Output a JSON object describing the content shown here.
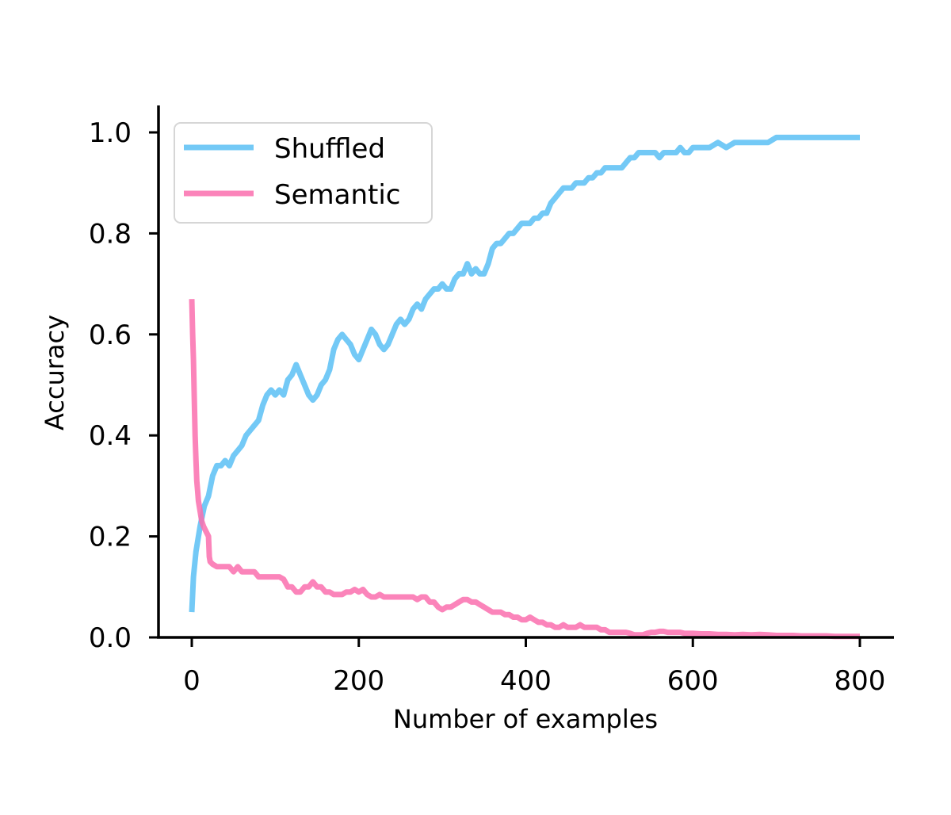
{
  "chart_data": {
    "type": "line",
    "title": "",
    "xlabel": "Number of examples",
    "ylabel": "Accuracy",
    "xlim": [
      -20,
      840
    ],
    "ylim": [
      0,
      1.05
    ],
    "x_ticks": [
      0,
      200,
      400,
      600,
      800
    ],
    "x_tick_labels": [
      "0",
      "200",
      "400",
      "600",
      "800"
    ],
    "y_ticks": [
      0.0,
      0.2,
      0.4,
      0.6,
      0.8,
      1.0
    ],
    "y_tick_labels": [
      "0.0",
      "0.2",
      "0.4",
      "0.6",
      "0.8",
      "1.0"
    ],
    "grid": false,
    "legend_position": "upper-left",
    "series": [
      {
        "name": "Shuffled",
        "color": "#5bbff5",
        "points": [
          [
            0,
            0.05
          ],
          [
            2,
            0.12
          ],
          [
            5,
            0.17
          ],
          [
            10,
            0.22
          ],
          [
            15,
            0.26
          ],
          [
            20,
            0.28
          ],
          [
            25,
            0.32
          ],
          [
            30,
            0.34
          ],
          [
            35,
            0.34
          ],
          [
            40,
            0.35
          ],
          [
            45,
            0.34
          ],
          [
            50,
            0.36
          ],
          [
            55,
            0.37
          ],
          [
            60,
            0.38
          ],
          [
            65,
            0.4
          ],
          [
            70,
            0.41
          ],
          [
            75,
            0.42
          ],
          [
            80,
            0.43
          ],
          [
            85,
            0.46
          ],
          [
            90,
            0.48
          ],
          [
            95,
            0.49
          ],
          [
            100,
            0.48
          ],
          [
            105,
            0.49
          ],
          [
            110,
            0.48
          ],
          [
            115,
            0.51
          ],
          [
            120,
            0.52
          ],
          [
            125,
            0.54
          ],
          [
            130,
            0.52
          ],
          [
            135,
            0.5
          ],
          [
            140,
            0.48
          ],
          [
            145,
            0.47
          ],
          [
            150,
            0.48
          ],
          [
            155,
            0.5
          ],
          [
            160,
            0.51
          ],
          [
            165,
            0.53
          ],
          [
            170,
            0.57
          ],
          [
            175,
            0.59
          ],
          [
            180,
            0.6
          ],
          [
            185,
            0.59
          ],
          [
            190,
            0.58
          ],
          [
            195,
            0.56
          ],
          [
            200,
            0.55
          ],
          [
            205,
            0.57
          ],
          [
            210,
            0.59
          ],
          [
            215,
            0.61
          ],
          [
            220,
            0.6
          ],
          [
            225,
            0.58
          ],
          [
            230,
            0.57
          ],
          [
            235,
            0.58
          ],
          [
            240,
            0.6
          ],
          [
            245,
            0.62
          ],
          [
            250,
            0.63
          ],
          [
            255,
            0.62
          ],
          [
            260,
            0.63
          ],
          [
            265,
            0.65
          ],
          [
            270,
            0.66
          ],
          [
            275,
            0.65
          ],
          [
            280,
            0.67
          ],
          [
            285,
            0.68
          ],
          [
            290,
            0.69
          ],
          [
            295,
            0.69
          ],
          [
            300,
            0.7
          ],
          [
            305,
            0.69
          ],
          [
            310,
            0.69
          ],
          [
            315,
            0.71
          ],
          [
            320,
            0.72
          ],
          [
            325,
            0.72
          ],
          [
            330,
            0.74
          ],
          [
            335,
            0.72
          ],
          [
            340,
            0.73
          ],
          [
            345,
            0.72
          ],
          [
            350,
            0.72
          ],
          [
            355,
            0.74
          ],
          [
            360,
            0.77
          ],
          [
            365,
            0.78
          ],
          [
            370,
            0.78
          ],
          [
            375,
            0.79
          ],
          [
            380,
            0.8
          ],
          [
            385,
            0.8
          ],
          [
            390,
            0.81
          ],
          [
            395,
            0.82
          ],
          [
            400,
            0.82
          ],
          [
            405,
            0.82
          ],
          [
            410,
            0.83
          ],
          [
            415,
            0.83
          ],
          [
            420,
            0.84
          ],
          [
            425,
            0.84
          ],
          [
            430,
            0.86
          ],
          [
            435,
            0.87
          ],
          [
            440,
            0.88
          ],
          [
            445,
            0.89
          ],
          [
            450,
            0.89
          ],
          [
            455,
            0.89
          ],
          [
            460,
            0.9
          ],
          [
            465,
            0.9
          ],
          [
            470,
            0.9
          ],
          [
            475,
            0.91
          ],
          [
            480,
            0.91
          ],
          [
            485,
            0.92
          ],
          [
            490,
            0.92
          ],
          [
            495,
            0.93
          ],
          [
            500,
            0.93
          ],
          [
            505,
            0.93
          ],
          [
            510,
            0.93
          ],
          [
            515,
            0.93
          ],
          [
            520,
            0.94
          ],
          [
            525,
            0.95
          ],
          [
            530,
            0.95
          ],
          [
            535,
            0.96
          ],
          [
            540,
            0.96
          ],
          [
            545,
            0.96
          ],
          [
            550,
            0.96
          ],
          [
            555,
            0.96
          ],
          [
            560,
            0.95
          ],
          [
            565,
            0.96
          ],
          [
            570,
            0.96
          ],
          [
            575,
            0.96
          ],
          [
            580,
            0.96
          ],
          [
            585,
            0.97
          ],
          [
            590,
            0.96
          ],
          [
            595,
            0.96
          ],
          [
            600,
            0.97
          ],
          [
            605,
            0.97
          ],
          [
            610,
            0.97
          ],
          [
            615,
            0.97
          ],
          [
            620,
            0.97
          ],
          [
            630,
            0.98
          ],
          [
            640,
            0.97
          ],
          [
            650,
            0.98
          ],
          [
            660,
            0.98
          ],
          [
            670,
            0.98
          ],
          [
            680,
            0.98
          ],
          [
            690,
            0.98
          ],
          [
            700,
            0.99
          ],
          [
            710,
            0.99
          ],
          [
            720,
            0.99
          ],
          [
            730,
            0.99
          ],
          [
            740,
            0.99
          ],
          [
            750,
            0.99
          ],
          [
            760,
            0.99
          ],
          [
            770,
            0.99
          ],
          [
            780,
            0.99
          ],
          [
            790,
            0.99
          ],
          [
            800,
            0.99
          ]
        ]
      },
      {
        "name": "Semantic",
        "color": "#fa6fae",
        "points": [
          [
            0,
            0.67
          ],
          [
            1,
            0.6
          ],
          [
            2,
            0.55
          ],
          [
            3,
            0.47
          ],
          [
            4,
            0.4
          ],
          [
            5,
            0.35
          ],
          [
            6,
            0.31
          ],
          [
            7,
            0.29
          ],
          [
            8,
            0.27
          ],
          [
            10,
            0.25
          ],
          [
            12,
            0.23
          ],
          [
            14,
            0.22
          ],
          [
            17,
            0.21
          ],
          [
            20,
            0.2
          ],
          [
            21,
            0.16
          ],
          [
            22,
            0.15
          ],
          [
            25,
            0.145
          ],
          [
            30,
            0.14
          ],
          [
            35,
            0.14
          ],
          [
            40,
            0.14
          ],
          [
            45,
            0.14
          ],
          [
            50,
            0.13
          ],
          [
            55,
            0.14
          ],
          [
            60,
            0.13
          ],
          [
            65,
            0.13
          ],
          [
            70,
            0.13
          ],
          [
            75,
            0.13
          ],
          [
            80,
            0.12
          ],
          [
            85,
            0.12
          ],
          [
            90,
            0.12
          ],
          [
            95,
            0.12
          ],
          [
            100,
            0.12
          ],
          [
            105,
            0.12
          ],
          [
            110,
            0.115
          ],
          [
            115,
            0.1
          ],
          [
            120,
            0.1
          ],
          [
            125,
            0.09
          ],
          [
            130,
            0.09
          ],
          [
            135,
            0.1
          ],
          [
            140,
            0.1
          ],
          [
            145,
            0.11
          ],
          [
            150,
            0.1
          ],
          [
            155,
            0.1
          ],
          [
            160,
            0.09
          ],
          [
            165,
            0.09
          ],
          [
            170,
            0.085
          ],
          [
            175,
            0.085
          ],
          [
            180,
            0.085
          ],
          [
            185,
            0.09
          ],
          [
            190,
            0.09
          ],
          [
            195,
            0.095
          ],
          [
            200,
            0.09
          ],
          [
            205,
            0.095
          ],
          [
            210,
            0.085
          ],
          [
            215,
            0.08
          ],
          [
            220,
            0.08
          ],
          [
            225,
            0.085
          ],
          [
            230,
            0.08
          ],
          [
            235,
            0.08
          ],
          [
            240,
            0.08
          ],
          [
            245,
            0.08
          ],
          [
            250,
            0.08
          ],
          [
            255,
            0.08
          ],
          [
            260,
            0.08
          ],
          [
            265,
            0.08
          ],
          [
            270,
            0.075
          ],
          [
            275,
            0.08
          ],
          [
            280,
            0.08
          ],
          [
            285,
            0.07
          ],
          [
            290,
            0.07
          ],
          [
            295,
            0.06
          ],
          [
            300,
            0.055
          ],
          [
            305,
            0.06
          ],
          [
            310,
            0.06
          ],
          [
            315,
            0.065
          ],
          [
            320,
            0.07
          ],
          [
            325,
            0.075
          ],
          [
            330,
            0.075
          ],
          [
            335,
            0.07
          ],
          [
            340,
            0.07
          ],
          [
            345,
            0.065
          ],
          [
            350,
            0.06
          ],
          [
            355,
            0.055
          ],
          [
            360,
            0.05
          ],
          [
            365,
            0.05
          ],
          [
            370,
            0.05
          ],
          [
            375,
            0.045
          ],
          [
            380,
            0.045
          ],
          [
            385,
            0.04
          ],
          [
            390,
            0.04
          ],
          [
            395,
            0.035
          ],
          [
            400,
            0.035
          ],
          [
            405,
            0.04
          ],
          [
            410,
            0.035
          ],
          [
            415,
            0.03
          ],
          [
            420,
            0.03
          ],
          [
            425,
            0.025
          ],
          [
            430,
            0.025
          ],
          [
            435,
            0.02
          ],
          [
            440,
            0.02
          ],
          [
            445,
            0.025
          ],
          [
            450,
            0.02
          ],
          [
            455,
            0.02
          ],
          [
            460,
            0.02
          ],
          [
            465,
            0.025
          ],
          [
            470,
            0.02
          ],
          [
            475,
            0.02
          ],
          [
            480,
            0.02
          ],
          [
            485,
            0.02
          ],
          [
            490,
            0.015
          ],
          [
            495,
            0.015
          ],
          [
            500,
            0.01
          ],
          [
            505,
            0.01
          ],
          [
            510,
            0.01
          ],
          [
            515,
            0.01
          ],
          [
            520,
            0.01
          ],
          [
            525,
            0.008
          ],
          [
            530,
            0.005
          ],
          [
            535,
            0.005
          ],
          [
            540,
            0.005
          ],
          [
            545,
            0.008
          ],
          [
            550,
            0.01
          ],
          [
            555,
            0.01
          ],
          [
            560,
            0.012
          ],
          [
            565,
            0.012
          ],
          [
            570,
            0.01
          ],
          [
            575,
            0.01
          ],
          [
            580,
            0.01
          ],
          [
            585,
            0.01
          ],
          [
            590,
            0.008
          ],
          [
            600,
            0.008
          ],
          [
            610,
            0.007
          ],
          [
            620,
            0.007
          ],
          [
            630,
            0.006
          ],
          [
            640,
            0.006
          ],
          [
            650,
            0.005
          ],
          [
            660,
            0.006
          ],
          [
            670,
            0.005
          ],
          [
            680,
            0.006
          ],
          [
            690,
            0.005
          ],
          [
            700,
            0.004
          ],
          [
            710,
            0.004
          ],
          [
            720,
            0.004
          ],
          [
            730,
            0.003
          ],
          [
            740,
            0.003
          ],
          [
            750,
            0.003
          ],
          [
            760,
            0.003
          ],
          [
            770,
            0.002
          ],
          [
            780,
            0.002
          ],
          [
            790,
            0.002
          ],
          [
            800,
            0.002
          ]
        ]
      }
    ]
  }
}
